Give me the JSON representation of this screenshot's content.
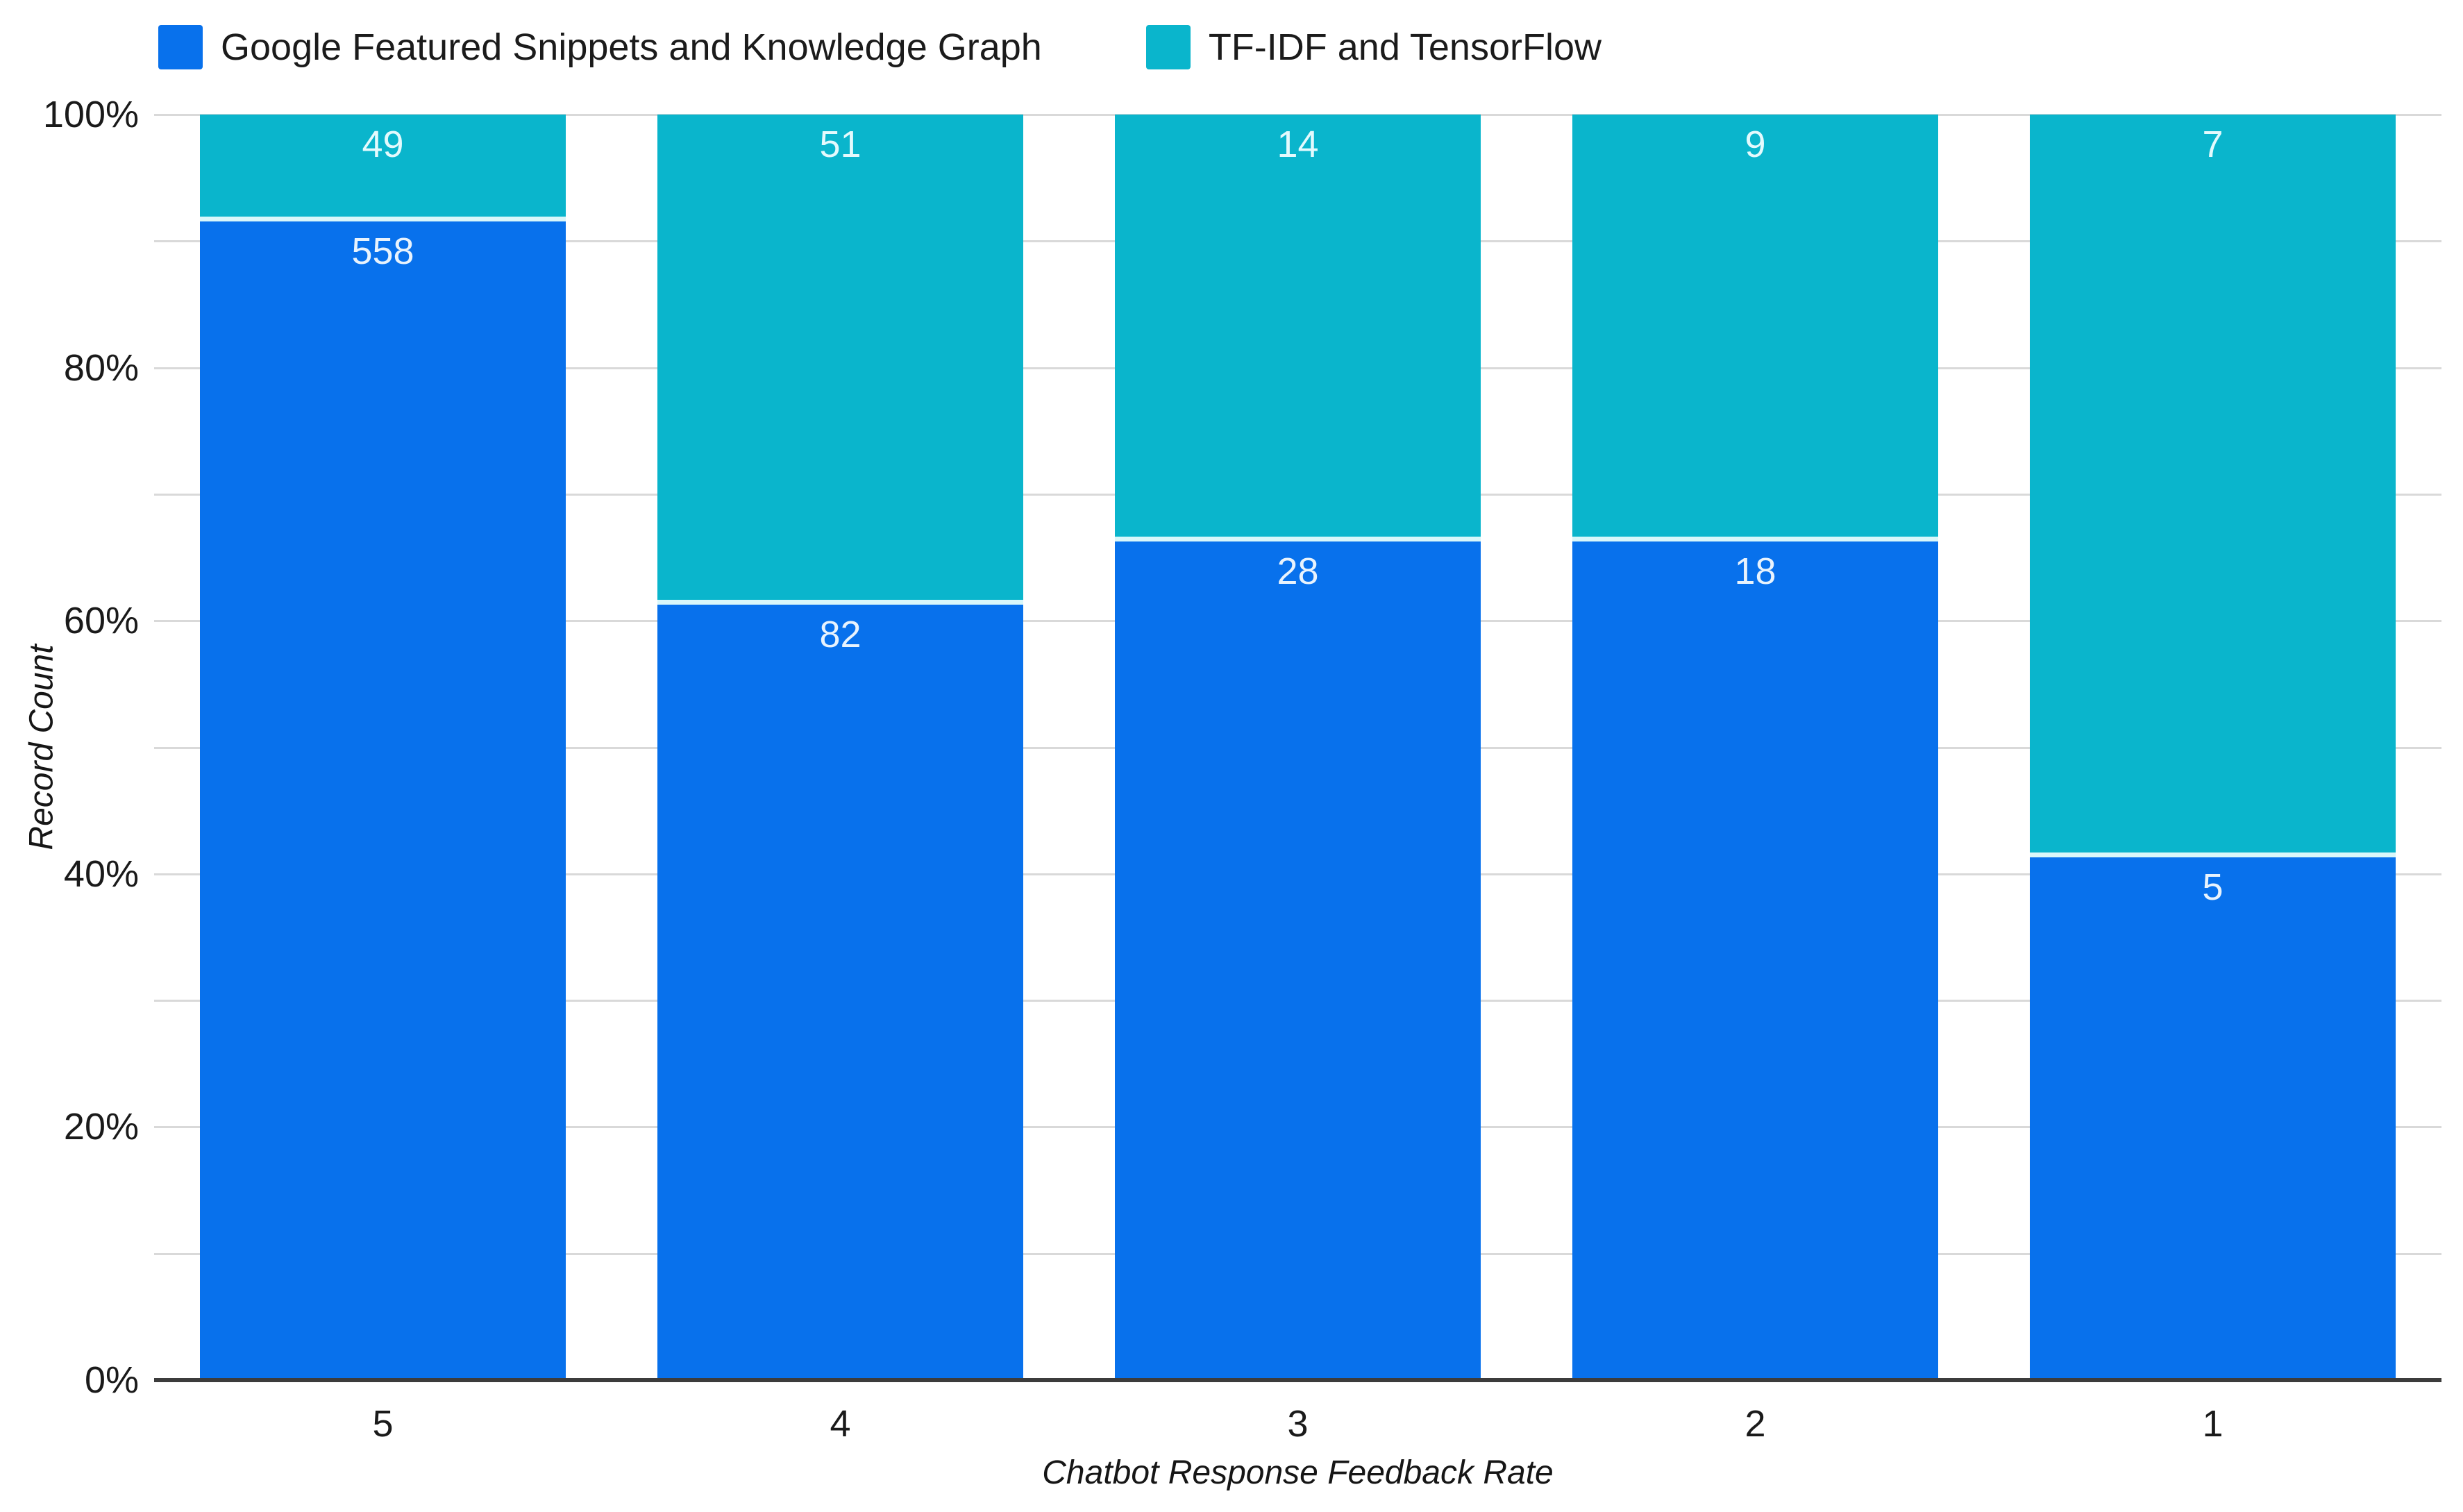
{
  "chart_data": {
    "type": "bar",
    "variant": "100-percent-stacked-column",
    "categories": [
      "5",
      "4",
      "3",
      "2",
      "1"
    ],
    "series": [
      {
        "name": "Google Featured Snippets and Knowledge Graph",
        "color": "#0871ec",
        "label_color": "#e8f3fd",
        "values": [
          558,
          82,
          28,
          18,
          5
        ]
      },
      {
        "name": "TF-IDF and TensorFlow",
        "color": "#0ab5cc",
        "label_color": "#e4fafd",
        "values": [
          49,
          51,
          14,
          9,
          7
        ]
      }
    ],
    "stack_order_top_to_bottom": [
      "TF-IDF and TensorFlow",
      "Google Featured Snippets and Knowledge Graph"
    ],
    "xlabel": "Chatbot Response Feedback Rate",
    "ylabel": "Record Count",
    "ylim": [
      0,
      100
    ],
    "y_major_ticks": [
      {
        "value": 0,
        "label": "0%"
      },
      {
        "value": 20,
        "label": "20%"
      },
      {
        "value": 40,
        "label": "40%"
      },
      {
        "value": 60,
        "label": "60%"
      },
      {
        "value": 80,
        "label": "80%"
      },
      {
        "value": 100,
        "label": "100%"
      }
    ],
    "y_minor_gridline_step": 10,
    "grid": true,
    "legend_position": "top-left",
    "colors": {
      "gridline": "#d9d9d9",
      "axis_line": "#3c3c3c",
      "text": "#1a1a1a",
      "segment_separator": "#d9f7fa",
      "background": "#ffffff"
    }
  }
}
